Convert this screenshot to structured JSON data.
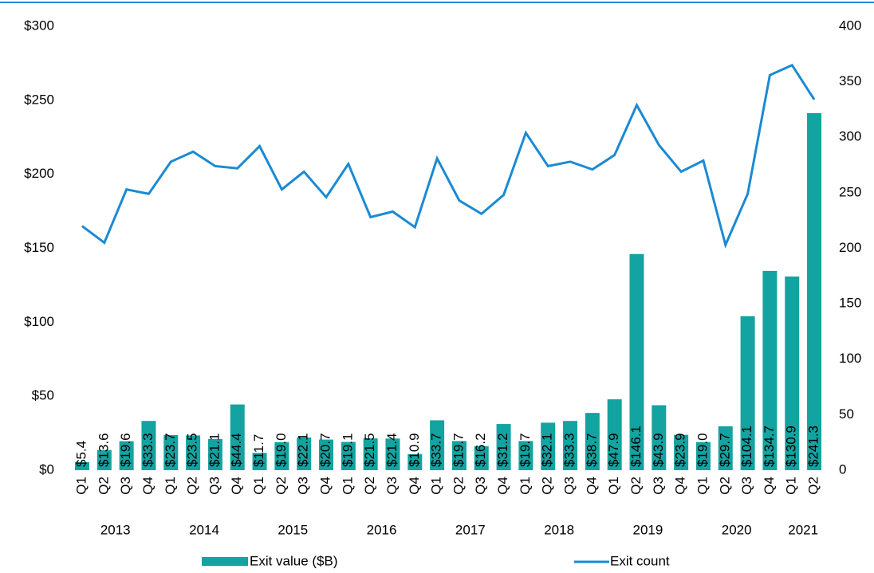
{
  "chart_data": {
    "type": "bar_line",
    "categories": [
      "Q1",
      "Q2",
      "Q3",
      "Q4",
      "Q1",
      "Q2",
      "Q3",
      "Q4",
      "Q1",
      "Q2",
      "Q3",
      "Q4",
      "Q1",
      "Q2",
      "Q3",
      "Q4",
      "Q1",
      "Q2",
      "Q3",
      "Q4",
      "Q1",
      "Q2",
      "Q3",
      "Q4",
      "Q1",
      "Q2",
      "Q3",
      "Q4",
      "Q1",
      "Q2",
      "Q3",
      "Q4",
      "Q1",
      "Q2"
    ],
    "years": [
      "2013",
      "2014",
      "2015",
      "2016",
      "2017",
      "2018",
      "2019",
      "2020",
      "2021"
    ],
    "series": [
      {
        "name": "Exit value ($B)",
        "type": "bar",
        "color": "#13a3a0",
        "values": [
          5.4,
          13.6,
          19.6,
          33.3,
          23.7,
          23.5,
          21.1,
          44.4,
          11.7,
          19.0,
          22.1,
          20.7,
          19.1,
          21.5,
          21.4,
          10.9,
          33.7,
          19.7,
          16.2,
          31.2,
          19.7,
          32.1,
          33.3,
          38.7,
          47.9,
          146.1,
          43.9,
          23.9,
          19.0,
          29.7,
          104.1,
          134.7,
          130.9,
          241.3
        ],
        "value_labels": [
          "$5.4",
          "$13.6",
          "$19.6",
          "$33.3",
          "$23.7",
          "$23.5",
          "$21.1",
          "$44.4",
          "$11.7",
          "$19.0",
          "$22.1",
          "$20.7",
          "$19.1",
          "$21.5",
          "$21.4",
          "$10.9",
          "$33.7",
          "$19.7",
          "$16.2",
          "$31.2",
          "$19.7",
          "$32.1",
          "$33.3",
          "$38.7",
          "$47.9",
          "$146.1",
          "$43.9",
          "$23.9",
          "$19.0",
          "$29.7",
          "$104.1",
          "$134.7",
          "$130.9",
          "$241.3"
        ]
      },
      {
        "name": "Exit count",
        "type": "line",
        "axis": "y2",
        "color": "#1a8ad4",
        "values": [
          220,
          205,
          253,
          249,
          278,
          287,
          274,
          272,
          292,
          253,
          269,
          246,
          276,
          228,
          233,
          219,
          281,
          243,
          231,
          248,
          304,
          274,
          278,
          271,
          284,
          329,
          293,
          269,
          279,
          203,
          249,
          356,
          365,
          334
        ]
      }
    ],
    "ylim": [
      0,
      300
    ],
    "yticks": [
      {
        "value": 0,
        "label": "$0"
      },
      {
        "value": 50,
        "label": "$50"
      },
      {
        "value": 100,
        "label": "$100"
      },
      {
        "value": 150,
        "label": "$150"
      },
      {
        "value": 200,
        "label": "$200"
      },
      {
        "value": 250,
        "label": "$250"
      },
      {
        "value": 300,
        "label": "$300"
      }
    ],
    "y2lim": [
      0,
      400
    ],
    "y2ticks": [
      0,
      50,
      100,
      150,
      200,
      250,
      300,
      350,
      400
    ],
    "grid": false
  }
}
